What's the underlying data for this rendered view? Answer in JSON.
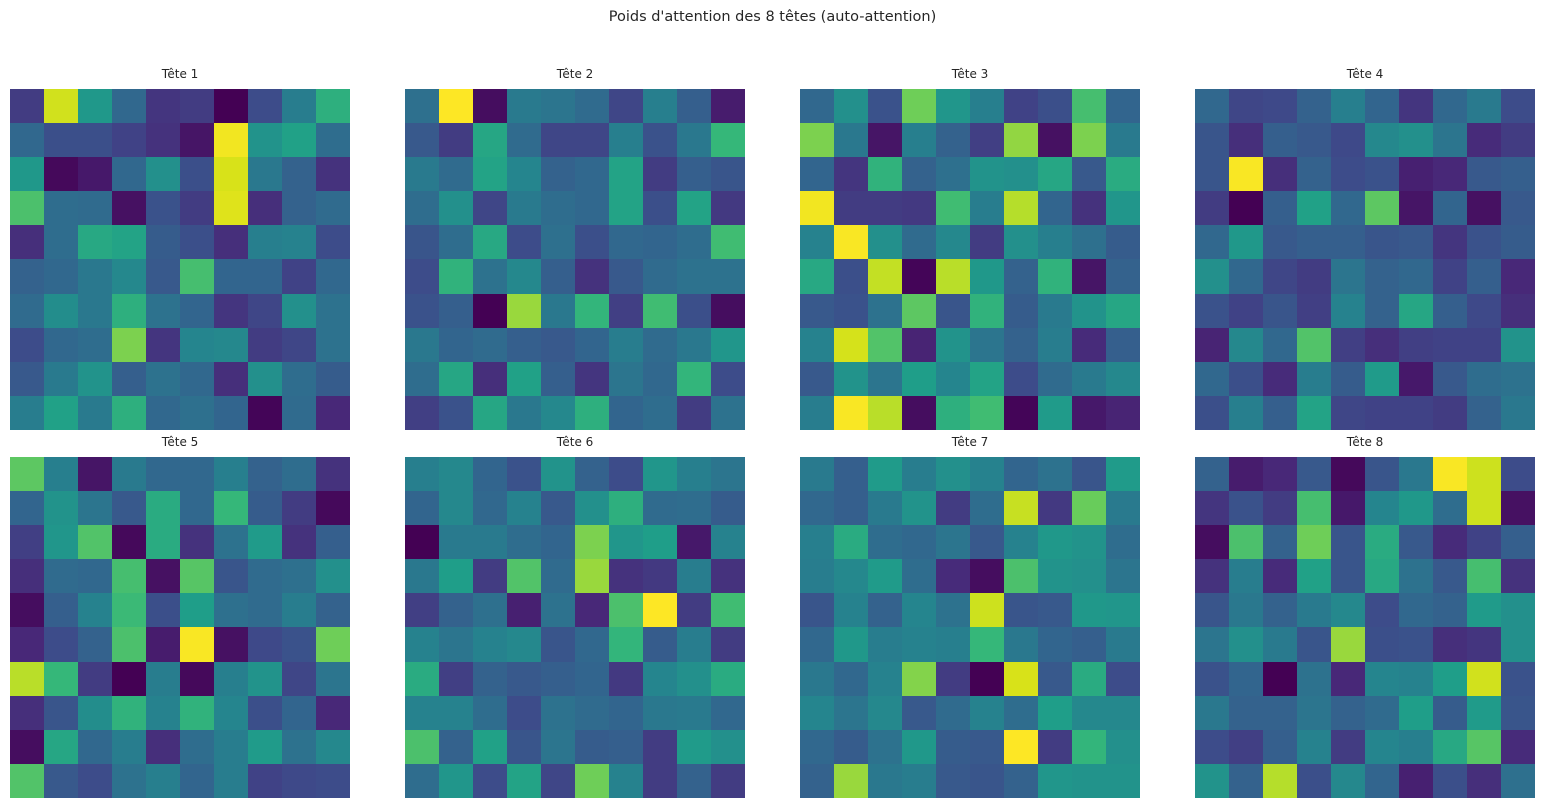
{
  "title": "Poids d'attention des 8 têtes (auto-attention)",
  "figure_background": "#ffffff",
  "text_color": "#262626",
  "chart_data": {
    "type": "heatmap",
    "layout": "2 rows x 4 columns of subplots",
    "grid_size": [
      10,
      10
    ],
    "colormap": "viridis",
    "value_range": [
      0,
      1
    ],
    "axes_visible": false,
    "colormap_stops": [
      "#440154",
      "#482878",
      "#3e4989",
      "#31688e",
      "#26828e",
      "#1f9e89",
      "#35b779",
      "#6ece58",
      "#b5de2b",
      "#d8e219",
      "#fde725"
    ],
    "subplots": [
      {
        "title": "Tête 1",
        "values": [
          [
            0.16,
            0.88,
            0.48,
            0.3,
            0.14,
            0.16,
            0.0,
            0.21,
            0.38,
            0.57
          ],
          [
            0.3,
            0.22,
            0.22,
            0.18,
            0.13,
            0.05,
            0.97,
            0.46,
            0.51,
            0.32
          ],
          [
            0.48,
            0.02,
            0.06,
            0.3,
            0.45,
            0.22,
            0.9,
            0.36,
            0.28,
            0.13
          ],
          [
            0.64,
            0.32,
            0.31,
            0.04,
            0.23,
            0.16,
            0.92,
            0.12,
            0.28,
            0.31
          ],
          [
            0.12,
            0.32,
            0.54,
            0.52,
            0.26,
            0.22,
            0.12,
            0.39,
            0.4,
            0.21
          ],
          [
            0.28,
            0.3,
            0.36,
            0.42,
            0.25,
            0.63,
            0.29,
            0.29,
            0.18,
            0.3
          ],
          [
            0.31,
            0.44,
            0.36,
            0.57,
            0.34,
            0.29,
            0.14,
            0.19,
            0.45,
            0.34
          ],
          [
            0.21,
            0.3,
            0.32,
            0.72,
            0.14,
            0.41,
            0.42,
            0.16,
            0.19,
            0.34
          ],
          [
            0.25,
            0.37,
            0.46,
            0.27,
            0.34,
            0.3,
            0.12,
            0.45,
            0.32,
            0.26
          ],
          [
            0.38,
            0.51,
            0.37,
            0.57,
            0.3,
            0.33,
            0.29,
            0.01,
            0.31,
            0.1
          ]
        ]
      },
      {
        "title": "Tête 2",
        "values": [
          [
            0.33,
            1.0,
            0.03,
            0.37,
            0.35,
            0.31,
            0.19,
            0.39,
            0.27,
            0.07
          ],
          [
            0.25,
            0.16,
            0.53,
            0.31,
            0.19,
            0.19,
            0.39,
            0.23,
            0.36,
            0.6
          ],
          [
            0.37,
            0.31,
            0.52,
            0.41,
            0.28,
            0.3,
            0.52,
            0.16,
            0.27,
            0.24
          ],
          [
            0.32,
            0.45,
            0.19,
            0.37,
            0.32,
            0.3,
            0.52,
            0.22,
            0.52,
            0.15
          ],
          [
            0.24,
            0.32,
            0.54,
            0.21,
            0.33,
            0.22,
            0.3,
            0.29,
            0.32,
            0.62
          ],
          [
            0.21,
            0.58,
            0.34,
            0.42,
            0.27,
            0.13,
            0.25,
            0.31,
            0.34,
            0.34
          ],
          [
            0.23,
            0.27,
            0.0,
            0.76,
            0.36,
            0.59,
            0.17,
            0.62,
            0.22,
            0.03
          ],
          [
            0.36,
            0.29,
            0.31,
            0.27,
            0.25,
            0.29,
            0.38,
            0.31,
            0.36,
            0.47
          ],
          [
            0.32,
            0.53,
            0.12,
            0.51,
            0.27,
            0.14,
            0.35,
            0.3,
            0.59,
            0.21
          ],
          [
            0.17,
            0.23,
            0.53,
            0.36,
            0.42,
            0.57,
            0.29,
            0.32,
            0.16,
            0.34
          ]
        ]
      },
      {
        "title": "Tête 3",
        "values": [
          [
            0.3,
            0.45,
            0.23,
            0.7,
            0.47,
            0.39,
            0.18,
            0.22,
            0.63,
            0.29
          ],
          [
            0.72,
            0.36,
            0.05,
            0.39,
            0.28,
            0.17,
            0.75,
            0.04,
            0.72,
            0.37
          ],
          [
            0.29,
            0.14,
            0.58,
            0.28,
            0.33,
            0.46,
            0.45,
            0.53,
            0.25,
            0.55
          ],
          [
            0.97,
            0.16,
            0.16,
            0.15,
            0.62,
            0.38,
            0.8,
            0.29,
            0.13,
            0.47
          ],
          [
            0.4,
            0.99,
            0.45,
            0.31,
            0.42,
            0.16,
            0.45,
            0.39,
            0.33,
            0.26
          ],
          [
            0.54,
            0.22,
            0.84,
            0.01,
            0.81,
            0.48,
            0.28,
            0.58,
            0.05,
            0.28
          ],
          [
            0.25,
            0.23,
            0.34,
            0.67,
            0.24,
            0.58,
            0.26,
            0.37,
            0.46,
            0.53
          ],
          [
            0.4,
            0.89,
            0.65,
            0.09,
            0.46,
            0.35,
            0.28,
            0.38,
            0.11,
            0.27
          ],
          [
            0.25,
            0.46,
            0.35,
            0.5,
            0.41,
            0.52,
            0.21,
            0.31,
            0.37,
            0.42
          ],
          [
            0.38,
            0.99,
            0.81,
            0.03,
            0.57,
            0.62,
            0.01,
            0.49,
            0.06,
            0.09
          ]
        ]
      },
      {
        "title": "Tête 4",
        "values": [
          [
            0.3,
            0.19,
            0.2,
            0.28,
            0.39,
            0.29,
            0.14,
            0.3,
            0.37,
            0.21
          ],
          [
            0.24,
            0.12,
            0.27,
            0.25,
            0.2,
            0.42,
            0.45,
            0.35,
            0.11,
            0.16
          ],
          [
            0.24,
            0.99,
            0.12,
            0.28,
            0.21,
            0.23,
            0.08,
            0.1,
            0.25,
            0.27
          ],
          [
            0.16,
            0.0,
            0.27,
            0.51,
            0.3,
            0.67,
            0.05,
            0.29,
            0.04,
            0.25
          ],
          [
            0.3,
            0.48,
            0.25,
            0.27,
            0.27,
            0.24,
            0.25,
            0.14,
            0.23,
            0.26
          ],
          [
            0.45,
            0.3,
            0.19,
            0.16,
            0.35,
            0.28,
            0.3,
            0.18,
            0.27,
            0.1
          ],
          [
            0.23,
            0.18,
            0.24,
            0.17,
            0.4,
            0.28,
            0.53,
            0.27,
            0.2,
            0.12
          ],
          [
            0.09,
            0.42,
            0.3,
            0.65,
            0.17,
            0.12,
            0.17,
            0.18,
            0.18,
            0.46
          ],
          [
            0.3,
            0.22,
            0.11,
            0.38,
            0.26,
            0.49,
            0.06,
            0.25,
            0.32,
            0.34
          ],
          [
            0.22,
            0.39,
            0.27,
            0.52,
            0.19,
            0.18,
            0.18,
            0.16,
            0.28,
            0.36
          ]
        ]
      },
      {
        "title": "Tête 5",
        "values": [
          [
            0.67,
            0.39,
            0.05,
            0.37,
            0.3,
            0.3,
            0.39,
            0.28,
            0.32,
            0.13
          ],
          [
            0.29,
            0.46,
            0.35,
            0.25,
            0.55,
            0.3,
            0.6,
            0.26,
            0.16,
            0.02
          ],
          [
            0.17,
            0.47,
            0.65,
            0.02,
            0.55,
            0.13,
            0.34,
            0.49,
            0.13,
            0.27
          ],
          [
            0.12,
            0.31,
            0.3,
            0.63,
            0.04,
            0.66,
            0.24,
            0.31,
            0.33,
            0.45
          ],
          [
            0.03,
            0.27,
            0.4,
            0.61,
            0.22,
            0.5,
            0.33,
            0.31,
            0.38,
            0.28
          ],
          [
            0.1,
            0.21,
            0.28,
            0.64,
            0.07,
            0.99,
            0.04,
            0.2,
            0.23,
            0.7
          ],
          [
            0.81,
            0.6,
            0.16,
            0.0,
            0.38,
            0.02,
            0.39,
            0.46,
            0.19,
            0.35
          ],
          [
            0.12,
            0.24,
            0.44,
            0.58,
            0.4,
            0.58,
            0.41,
            0.22,
            0.29,
            0.1
          ],
          [
            0.03,
            0.53,
            0.3,
            0.38,
            0.12,
            0.32,
            0.38,
            0.49,
            0.34,
            0.42
          ],
          [
            0.65,
            0.25,
            0.21,
            0.34,
            0.39,
            0.29,
            0.38,
            0.18,
            0.2,
            0.21
          ]
        ]
      },
      {
        "title": "Tête 6",
        "values": [
          [
            0.39,
            0.42,
            0.29,
            0.23,
            0.46,
            0.28,
            0.21,
            0.47,
            0.39,
            0.35
          ],
          [
            0.29,
            0.42,
            0.3,
            0.4,
            0.25,
            0.45,
            0.57,
            0.31,
            0.32,
            0.26
          ],
          [
            0.0,
            0.37,
            0.37,
            0.32,
            0.29,
            0.72,
            0.47,
            0.5,
            0.06,
            0.4
          ],
          [
            0.36,
            0.5,
            0.16,
            0.65,
            0.31,
            0.76,
            0.13,
            0.15,
            0.38,
            0.13
          ],
          [
            0.17,
            0.28,
            0.33,
            0.08,
            0.34,
            0.1,
            0.64,
            1.0,
            0.16,
            0.62
          ],
          [
            0.4,
            0.35,
            0.4,
            0.42,
            0.24,
            0.3,
            0.59,
            0.26,
            0.38,
            0.16
          ],
          [
            0.55,
            0.17,
            0.28,
            0.25,
            0.27,
            0.29,
            0.15,
            0.41,
            0.45,
            0.55
          ],
          [
            0.4,
            0.4,
            0.32,
            0.21,
            0.34,
            0.31,
            0.29,
            0.36,
            0.37,
            0.3
          ],
          [
            0.64,
            0.28,
            0.51,
            0.24,
            0.35,
            0.26,
            0.27,
            0.16,
            0.49,
            0.45
          ],
          [
            0.32,
            0.47,
            0.21,
            0.52,
            0.19,
            0.7,
            0.4,
            0.16,
            0.28,
            0.16
          ]
        ]
      },
      {
        "title": "Tête 7",
        "values": [
          [
            0.37,
            0.27,
            0.49,
            0.38,
            0.45,
            0.4,
            0.29,
            0.34,
            0.24,
            0.49
          ],
          [
            0.3,
            0.27,
            0.37,
            0.46,
            0.16,
            0.32,
            0.85,
            0.15,
            0.69,
            0.37
          ],
          [
            0.39,
            0.55,
            0.32,
            0.3,
            0.35,
            0.25,
            0.4,
            0.48,
            0.46,
            0.32
          ],
          [
            0.38,
            0.42,
            0.49,
            0.32,
            0.11,
            0.03,
            0.64,
            0.46,
            0.45,
            0.35
          ],
          [
            0.24,
            0.4,
            0.28,
            0.41,
            0.34,
            0.87,
            0.24,
            0.25,
            0.48,
            0.47
          ],
          [
            0.3,
            0.48,
            0.38,
            0.4,
            0.39,
            0.6,
            0.36,
            0.29,
            0.27,
            0.37
          ],
          [
            0.36,
            0.3,
            0.4,
            0.73,
            0.16,
            0.0,
            0.9,
            0.25,
            0.55,
            0.21
          ],
          [
            0.41,
            0.35,
            0.42,
            0.25,
            0.31,
            0.4,
            0.32,
            0.5,
            0.42,
            0.42
          ],
          [
            0.3,
            0.26,
            0.34,
            0.48,
            0.26,
            0.25,
            1.0,
            0.16,
            0.59,
            0.45
          ],
          [
            0.28,
            0.76,
            0.36,
            0.38,
            0.25,
            0.24,
            0.28,
            0.47,
            0.46,
            0.46
          ]
        ]
      },
      {
        "title": "Tête 8",
        "values": [
          [
            0.28,
            0.07,
            0.1,
            0.25,
            0.02,
            0.24,
            0.36,
            0.99,
            0.87,
            0.21
          ],
          [
            0.14,
            0.23,
            0.16,
            0.63,
            0.06,
            0.41,
            0.48,
            0.32,
            0.87,
            0.04
          ],
          [
            0.03,
            0.64,
            0.28,
            0.7,
            0.24,
            0.55,
            0.25,
            0.11,
            0.18,
            0.27
          ],
          [
            0.13,
            0.38,
            0.11,
            0.51,
            0.24,
            0.54,
            0.34,
            0.25,
            0.63,
            0.13
          ],
          [
            0.24,
            0.36,
            0.28,
            0.37,
            0.42,
            0.21,
            0.3,
            0.28,
            0.49,
            0.45
          ],
          [
            0.35,
            0.45,
            0.37,
            0.24,
            0.76,
            0.22,
            0.23,
            0.12,
            0.14,
            0.45
          ],
          [
            0.23,
            0.29,
            0.0,
            0.34,
            0.1,
            0.41,
            0.4,
            0.5,
            0.88,
            0.23
          ],
          [
            0.36,
            0.28,
            0.28,
            0.35,
            0.28,
            0.31,
            0.5,
            0.26,
            0.49,
            0.24
          ],
          [
            0.21,
            0.17,
            0.27,
            0.4,
            0.16,
            0.41,
            0.39,
            0.54,
            0.66,
            0.11
          ],
          [
            0.46,
            0.28,
            0.8,
            0.22,
            0.42,
            0.29,
            0.08,
            0.22,
            0.12,
            0.33
          ]
        ]
      }
    ]
  }
}
